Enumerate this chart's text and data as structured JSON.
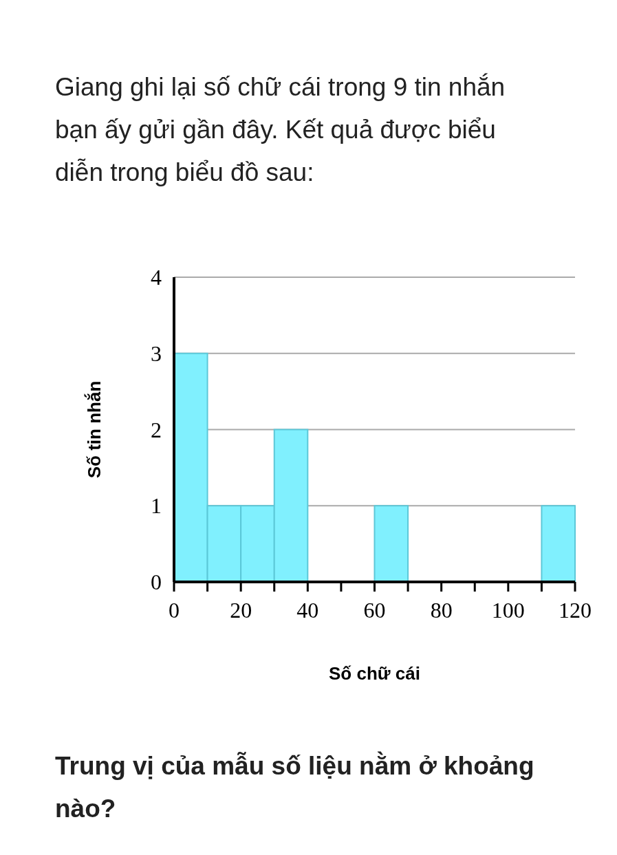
{
  "chart_data": {
    "type": "histogram",
    "title": "Giang ghi lại số chữ cái trong 9 tin nhắn bạn ấy gửi gần đây. Kết quả được biểu diễn trong biểu đồ sau:",
    "xlabel": "Số chữ cái",
    "ylabel": "Số tin nhắn",
    "bins": [
      0,
      10,
      20,
      30,
      40,
      50,
      60,
      70,
      80,
      90,
      100,
      110,
      120
    ],
    "values": [
      3,
      1,
      1,
      2,
      0,
      0,
      1,
      0,
      0,
      0,
      0,
      1
    ],
    "color": "#80f0fe",
    "xlim": [
      0,
      120
    ],
    "ylim": [
      0,
      4
    ],
    "xticks": [
      0,
      {
        "value": 10,
        "label": null
      },
      20,
      {
        "value": 30,
        "label": null
      },
      40,
      {
        "value": 50,
        "label": null
      },
      60,
      {
        "value": 70,
        "label": null
      },
      80,
      {
        "value": 90,
        "label": null
      },
      100,
      {
        "value": 110,
        "label": null
      },
      120
    ],
    "yticks": [
      0,
      1,
      2,
      3,
      4
    ],
    "grid": "y",
    "annotations": [
      "Trung vị của mẫu số liệu nằm ở khoảng nào?"
    ]
  }
}
